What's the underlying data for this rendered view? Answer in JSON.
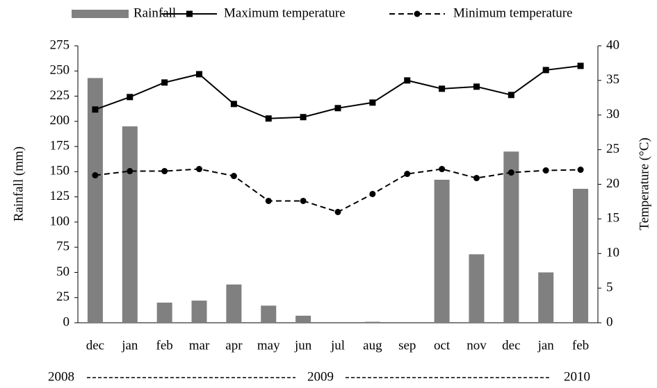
{
  "chart_data": {
    "type": "bar_line",
    "categories": [
      "dec",
      "jan",
      "feb",
      "mar",
      "apr",
      "may",
      "jun",
      "jul",
      "aug",
      "sep",
      "oct",
      "nov",
      "dec",
      "jan",
      "feb"
    ],
    "year_labels": [
      "2008",
      "2009",
      "2010"
    ],
    "ylabel": "Rainfall (mm)",
    "y2label": "Temperature (°C)",
    "ylim": [
      0,
      275
    ],
    "yticks": [
      0,
      25,
      50,
      75,
      100,
      125,
      150,
      175,
      200,
      225,
      250,
      275
    ],
    "y2lim": [
      0,
      40
    ],
    "y2ticks": [
      0,
      5,
      10,
      15,
      20,
      25,
      30,
      35,
      40
    ],
    "series": [
      {
        "name": "Rainfall",
        "kind": "bar",
        "color": "#808080",
        "values": [
          243,
          195,
          20,
          22,
          38,
          17,
          7,
          0,
          1,
          0,
          142,
          68,
          170,
          50,
          133
        ]
      },
      {
        "name": "Maximum temperature",
        "kind": "line",
        "axis": "y2",
        "color": "#000000",
        "dashed": false,
        "marker": "square",
        "values": [
          30.8,
          32.6,
          34.7,
          35.9,
          31.6,
          29.5,
          29.7,
          31.0,
          31.8,
          35.0,
          33.8,
          34.1,
          32.9,
          36.5,
          37.1
        ]
      },
      {
        "name": "Minimum temperature",
        "kind": "line",
        "axis": "y2",
        "color": "#000000",
        "dashed": true,
        "marker": "circle",
        "values": [
          21.3,
          21.9,
          21.9,
          22.2,
          21.2,
          17.6,
          17.6,
          16.0,
          18.6,
          21.5,
          22.2,
          20.9,
          21.7,
          22.0,
          22.1
        ]
      }
    ],
    "legend": "top"
  }
}
